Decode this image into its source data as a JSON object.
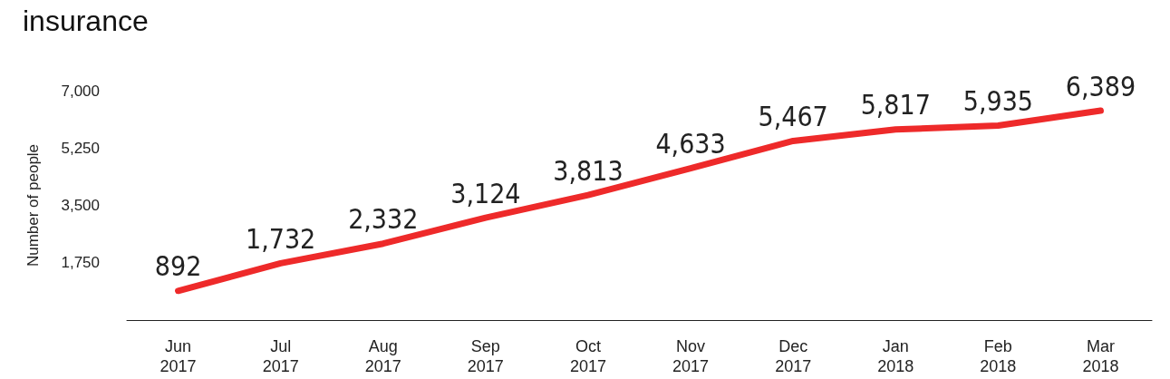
{
  "chart_data": {
    "type": "line",
    "title": "insurance",
    "ylabel": "Number of people",
    "categories": [
      "Jun\n2017",
      "Jul\n2017",
      "Aug\n2017",
      "Sep\n2017",
      "Oct\n2017",
      "Nov\n2017",
      "Dec\n2017",
      "Jan\n2018",
      "Feb\n2018",
      "Mar\n2018"
    ],
    "series": [
      {
        "color": "#ee2a2a",
        "values": [
          892,
          1732,
          2332,
          3124,
          3813,
          4633,
          5467,
          5817,
          5935,
          6389
        ],
        "value_labels": [
          "892",
          "1,732",
          "2,332",
          "3,124",
          "3,813",
          "4,633",
          "5,467",
          "5,817",
          "5,935",
          "6,389"
        ]
      }
    ],
    "ylim": [
      0,
      7000
    ],
    "yticks": [
      {
        "value": 1750,
        "label": "1,750"
      },
      {
        "value": 3500,
        "label": "3,500"
      },
      {
        "value": 5250,
        "label": "5,250"
      },
      {
        "value": 7000,
        "label": "7,000"
      }
    ],
    "grid": false,
    "marker": "none",
    "line_style": "solid"
  }
}
